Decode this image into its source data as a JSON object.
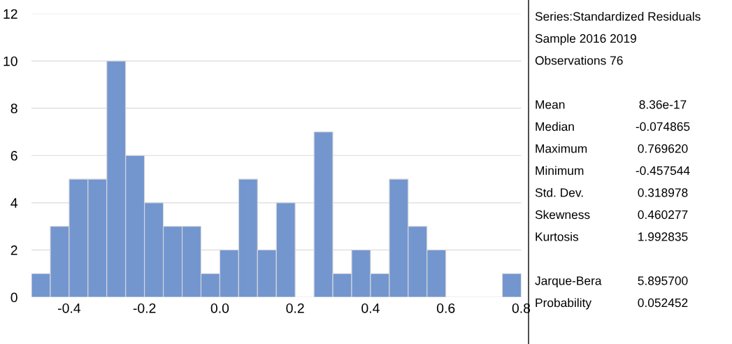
{
  "chart_data": {
    "type": "histogram",
    "bins": [
      -0.5,
      -0.45,
      -0.4,
      -0.35,
      -0.3,
      -0.25,
      -0.2,
      -0.15,
      -0.1,
      -0.05,
      0.0,
      0.05,
      0.1,
      0.15,
      0.2,
      0.25,
      0.3,
      0.35,
      0.4,
      0.45,
      0.5,
      0.55,
      0.6,
      0.65,
      0.7,
      0.75,
      0.8
    ],
    "values": [
      1,
      3,
      5,
      5,
      10,
      6,
      4,
      3,
      3,
      1,
      2,
      5,
      2,
      4,
      0,
      7,
      1,
      2,
      1,
      5,
      3,
      2,
      0,
      0,
      0,
      1
    ],
    "color": "#7396cf",
    "xlim": [
      -0.5,
      0.8
    ],
    "xticks": [
      {
        "value": -0.4,
        "label": "-0.4"
      },
      {
        "value": -0.2,
        "label": "-0.2"
      },
      {
        "value": 0.0,
        "label": "0.0"
      },
      {
        "value": 0.2,
        "label": "0.2"
      },
      {
        "value": 0.4,
        "label": "0.4"
      },
      {
        "value": 0.6,
        "label": "0.6"
      },
      {
        "value": 0.8,
        "label": "0.8"
      }
    ],
    "ylim": [
      0,
      12
    ],
    "yticks": [
      0,
      2,
      4,
      6,
      8,
      10,
      12
    ],
    "grid": "y",
    "annotations": [
      "Series:Standardized Residuals",
      "Sample 2016 2019",
      "Observations 76",
      "Mean\t8.36e-17",
      "Median\t-0.074865",
      "Maximum\t0.769620",
      "Minimum\t-0.457544",
      "Std. Dev.\t0.318978",
      "Skewness\t0.460277",
      "Kurtosis\t1.992835",
      "Jarque-Bera\t5.895700",
      "Probability\t0.052452"
    ]
  }
}
